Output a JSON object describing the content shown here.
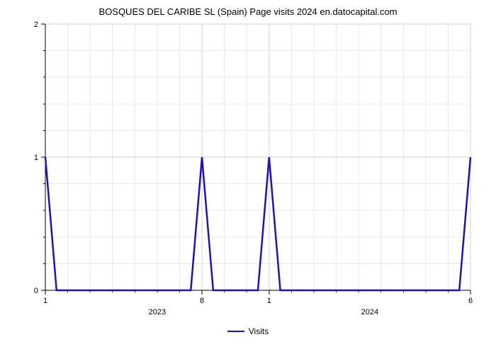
{
  "chart": {
    "type": "line",
    "title": "BOSQUES DEL CARIBE SL (Spain) Page visits 2024 en.datocapital.com",
    "title_fontsize": 13,
    "title_color": "#000000",
    "background_color": "#ffffff",
    "series": {
      "name": "Visits",
      "color": "#1f10c4",
      "line_width": 2.5,
      "x": [
        0,
        0.5,
        6.5,
        7,
        7.5,
        9.5,
        10,
        10.5,
        11.5,
        18.5,
        19
      ],
      "y": [
        1,
        0,
        0,
        1,
        0,
        0,
        1,
        0,
        0,
        0,
        1
      ]
    },
    "x_axis": {
      "lim": [
        0,
        19
      ],
      "major_labels": [
        {
          "v": 0,
          "text": "1"
        },
        {
          "v": 7,
          "text": "8"
        },
        {
          "v": 10,
          "text": "1"
        },
        {
          "v": 19,
          "text": "6"
        }
      ],
      "group_labels": [
        {
          "v": 5,
          "text": "2023"
        },
        {
          "v": 14.5,
          "text": "2024"
        }
      ],
      "minor_ticks": [
        1,
        2,
        3,
        4,
        5,
        6,
        8,
        9,
        11,
        12,
        13,
        14,
        15,
        16,
        17,
        18
      ],
      "label_fontsize": 11,
      "group_label_fontsize": 12
    },
    "y_axis": {
      "lim": [
        0,
        2
      ],
      "major_ticks": [
        0,
        1,
        2
      ],
      "minor_ticks": [
        0.2,
        0.4,
        0.6,
        0.8,
        1.2,
        1.4,
        1.6,
        1.8
      ],
      "label_fontsize": 11
    },
    "grid": {
      "major_color": "#d0d0d0",
      "minor_color": "#e8e8e8"
    },
    "legend": {
      "label": "Visits",
      "color": "#1f10c4",
      "fontsize": 12
    }
  }
}
